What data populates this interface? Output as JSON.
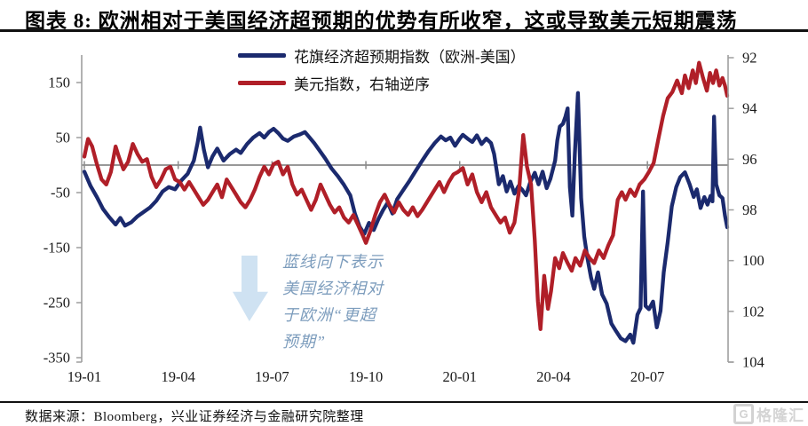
{
  "header": {
    "title": "图表 8: 欧洲相对于美国经济超预期的优势有所收窄，这或导致美元短期震荡"
  },
  "legend": {
    "items": [
      {
        "label": "花旗经济超预期指数（欧洲-美国）",
        "color": "#1b2a6e"
      },
      {
        "label": "美元指数，右轴逆序",
        "color": "#b01f28"
      }
    ]
  },
  "annotation": {
    "lines": [
      "蓝线向下表示",
      "美国经济相对",
      "于欧洲“更超",
      "预期”"
    ],
    "text_color": "#7d9dbd",
    "arrow_direction": "down",
    "arrow_color": "#cfe2f2"
  },
  "footer": {
    "source": "数据来源：Bloomberg，兴业证券经济与金融研究院整理"
  },
  "watermark": {
    "logo_letter": "G",
    "text": "格隆汇"
  },
  "colors": {
    "blue_series": "#1b2a6e",
    "red_series": "#b01f28",
    "axis": "#9e9e9e",
    "zero_line": "#8a8a8a",
    "title_rule": "#111111"
  },
  "chart_data": {
    "type": "line",
    "gridlines": "none (horizontal zero line only)",
    "x_axis": {
      "unit": "months since 2019-01",
      "range": [
        0,
        20.55
      ],
      "ticks": [
        {
          "m": 0,
          "label": "19-01"
        },
        {
          "m": 3,
          "label": "19-04"
        },
        {
          "m": 6,
          "label": "19-07"
        },
        {
          "m": 9,
          "label": "19-10"
        },
        {
          "m": 12,
          "label": "20-01"
        },
        {
          "m": 15,
          "label": "20-04"
        },
        {
          "m": 18,
          "label": "20-07"
        }
      ]
    },
    "left_axis": {
      "ticks": [
        150,
        50,
        -50,
        -150,
        -250,
        -350
      ],
      "min": -350,
      "max": 200,
      "zero_line": true
    },
    "right_axis": {
      "ticks": [
        92,
        94,
        96,
        98,
        100,
        102,
        104
      ],
      "min": 92,
      "max": 104,
      "inverted": true
    },
    "legend_position": "top-center",
    "series": [
      {
        "name": "花旗经济超预期指数（欧洲-美国）",
        "axis": "left",
        "color": "#1b2a6e",
        "points": [
          [
            0,
            -12
          ],
          [
            0.2,
            -38
          ],
          [
            0.4,
            -58
          ],
          [
            0.6,
            -80
          ],
          [
            0.8,
            -95
          ],
          [
            1,
            -108
          ],
          [
            1.15,
            -96
          ],
          [
            1.3,
            -110
          ],
          [
            1.5,
            -104
          ],
          [
            1.7,
            -93
          ],
          [
            1.9,
            -85
          ],
          [
            2.1,
            -77
          ],
          [
            2.3,
            -65
          ],
          [
            2.5,
            -48
          ],
          [
            2.7,
            -40
          ],
          [
            2.9,
            -44
          ],
          [
            3.1,
            -28
          ],
          [
            3.3,
            -16
          ],
          [
            3.5,
            8
          ],
          [
            3.62,
            40
          ],
          [
            3.7,
            68
          ],
          [
            3.82,
            28
          ],
          [
            3.95,
            -4
          ],
          [
            4.1,
            16
          ],
          [
            4.25,
            30
          ],
          [
            4.45,
            8
          ],
          [
            4.65,
            20
          ],
          [
            4.85,
            28
          ],
          [
            5,
            22
          ],
          [
            5.2,
            38
          ],
          [
            5.4,
            50
          ],
          [
            5.6,
            58
          ],
          [
            5.75,
            50
          ],
          [
            5.9,
            60
          ],
          [
            6.05,
            66
          ],
          [
            6.2,
            58
          ],
          [
            6.35,
            48
          ],
          [
            6.5,
            44
          ],
          [
            6.7,
            52
          ],
          [
            6.9,
            56
          ],
          [
            7.05,
            60
          ],
          [
            7.2,
            50
          ],
          [
            7.35,
            40
          ],
          [
            7.5,
            28
          ],
          [
            7.7,
            12
          ],
          [
            7.9,
            -6
          ],
          [
            8.1,
            -20
          ],
          [
            8.3,
            -36
          ],
          [
            8.5,
            -55
          ],
          [
            8.65,
            -88
          ],
          [
            8.8,
            -112
          ],
          [
            8.95,
            -125
          ],
          [
            9.1,
            -105
          ],
          [
            9.25,
            -118
          ],
          [
            9.4,
            -98
          ],
          [
            9.55,
            -82
          ],
          [
            9.7,
            -68
          ],
          [
            9.85,
            -88
          ],
          [
            10,
            -62
          ],
          [
            10.2,
            -45
          ],
          [
            10.4,
            -28
          ],
          [
            10.6,
            -10
          ],
          [
            10.8,
            8
          ],
          [
            11,
            25
          ],
          [
            11.2,
            40
          ],
          [
            11.4,
            52
          ],
          [
            11.55,
            45
          ],
          [
            11.7,
            50
          ],
          [
            11.85,
            35
          ],
          [
            12,
            48
          ],
          [
            12.1,
            55
          ],
          [
            12.25,
            48
          ],
          [
            12.4,
            42
          ],
          [
            12.55,
            54
          ],
          [
            12.7,
            38
          ],
          [
            12.85,
            48
          ],
          [
            13,
            40
          ],
          [
            13.1,
            20
          ],
          [
            13.25,
            -35
          ],
          [
            13.38,
            -20
          ],
          [
            13.5,
            -48
          ],
          [
            13.62,
            -30
          ],
          [
            13.75,
            -52
          ],
          [
            13.88,
            -38
          ],
          [
            14,
            -45
          ],
          [
            14.12,
            -55
          ],
          [
            14.25,
            -32
          ],
          [
            14.4,
            -14
          ],
          [
            14.52,
            -35
          ],
          [
            14.65,
            -12
          ],
          [
            14.78,
            -42
          ],
          [
            14.9,
            -25
          ],
          [
            15.05,
            8
          ],
          [
            15.12,
            45
          ],
          [
            15.2,
            70
          ],
          [
            15.3,
            75
          ],
          [
            15.38,
            88
          ],
          [
            15.45,
            103
          ],
          [
            15.52,
            -40
          ],
          [
            15.6,
            -92
          ],
          [
            15.68,
            20
          ],
          [
            15.78,
            131
          ],
          [
            15.88,
            -60
          ],
          [
            15.98,
            -130
          ],
          [
            16.08,
            -168
          ],
          [
            16.2,
            -205
          ],
          [
            16.3,
            -225
          ],
          [
            16.42,
            -195
          ],
          [
            16.55,
            -235
          ],
          [
            16.7,
            -252
          ],
          [
            16.85,
            -288
          ],
          [
            17,
            -302
          ],
          [
            17.15,
            -315
          ],
          [
            17.3,
            -320
          ],
          [
            17.45,
            -308
          ],
          [
            17.55,
            -323
          ],
          [
            17.68,
            -272
          ],
          [
            17.78,
            -260
          ],
          [
            17.86,
            -48
          ],
          [
            17.94,
            -256
          ],
          [
            18.05,
            -262
          ],
          [
            18.18,
            -248
          ],
          [
            18.3,
            -295
          ],
          [
            18.42,
            -265
          ],
          [
            18.52,
            -195
          ],
          [
            18.65,
            -140
          ],
          [
            18.78,
            -75
          ],
          [
            18.92,
            -40
          ],
          [
            19.05,
            -22
          ],
          [
            19.2,
            -13
          ],
          [
            19.35,
            -35
          ],
          [
            19.48,
            -58
          ],
          [
            19.58,
            -44
          ],
          [
            19.7,
            -78
          ],
          [
            19.82,
            -58
          ],
          [
            19.92,
            -72
          ],
          [
            20.02,
            -56
          ],
          [
            20.08,
            -66
          ],
          [
            20.13,
            88
          ],
          [
            20.2,
            -35
          ],
          [
            20.3,
            -55
          ],
          [
            20.4,
            -60
          ],
          [
            20.48,
            -92
          ],
          [
            20.55,
            -113
          ]
        ]
      },
      {
        "name": "美元指数，右轴逆序",
        "axis": "right",
        "color": "#b01f28",
        "points": [
          [
            0,
            95.9
          ],
          [
            0.12,
            95.2
          ],
          [
            0.25,
            95.5
          ],
          [
            0.4,
            96.2
          ],
          [
            0.55,
            96.8
          ],
          [
            0.7,
            97
          ],
          [
            0.85,
            96.5
          ],
          [
            1,
            95.5
          ],
          [
            1.1,
            95.9
          ],
          [
            1.25,
            96.4
          ],
          [
            1.4,
            96.1
          ],
          [
            1.55,
            95.4
          ],
          [
            1.7,
            95.8
          ],
          [
            1.85,
            96.1
          ],
          [
            2,
            96
          ],
          [
            2.15,
            96.7
          ],
          [
            2.3,
            97.1
          ],
          [
            2.45,
            96.8
          ],
          [
            2.6,
            96.4
          ],
          [
            2.75,
            96.3
          ],
          [
            2.9,
            96.8
          ],
          [
            3.05,
            96.9
          ],
          [
            3.2,
            97.2
          ],
          [
            3.35,
            96.9
          ],
          [
            3.5,
            97.2
          ],
          [
            3.65,
            97.5
          ],
          [
            3.8,
            97.8
          ],
          [
            3.95,
            97.6
          ],
          [
            4.1,
            97.3
          ],
          [
            4.25,
            97
          ],
          [
            4.4,
            97.5
          ],
          [
            4.55,
            96.8
          ],
          [
            4.7,
            97.1
          ],
          [
            4.85,
            97.4
          ],
          [
            5,
            97.7
          ],
          [
            5.15,
            97.9
          ],
          [
            5.3,
            97.6
          ],
          [
            5.45,
            97.2
          ],
          [
            5.6,
            96.7
          ],
          [
            5.75,
            96.3
          ],
          [
            5.9,
            96.6
          ],
          [
            6.05,
            96.2
          ],
          [
            6.2,
            96.1
          ],
          [
            6.35,
            96.6
          ],
          [
            6.5,
            96.3
          ],
          [
            6.65,
            97
          ],
          [
            6.8,
            97.4
          ],
          [
            6.95,
            97.2
          ],
          [
            7.1,
            97.6
          ],
          [
            7.25,
            98
          ],
          [
            7.4,
            97.6
          ],
          [
            7.55,
            97
          ],
          [
            7.7,
            97.4
          ],
          [
            7.85,
            97.8
          ],
          [
            8,
            98.1
          ],
          [
            8.15,
            97.9
          ],
          [
            8.3,
            98.3
          ],
          [
            8.45,
            98.5
          ],
          [
            8.6,
            98.2
          ],
          [
            8.75,
            98.6
          ],
          [
            8.9,
            99
          ],
          [
            9,
            99.3
          ],
          [
            9.15,
            98.8
          ],
          [
            9.3,
            98.2
          ],
          [
            9.45,
            97.7
          ],
          [
            9.6,
            97.4
          ],
          [
            9.75,
            97.8
          ],
          [
            9.9,
            98.1
          ],
          [
            10.05,
            97.7
          ],
          [
            10.2,
            98
          ],
          [
            10.35,
            98.2
          ],
          [
            10.5,
            97.9
          ],
          [
            10.65,
            98.25
          ],
          [
            10.8,
            98
          ],
          [
            11,
            97.6
          ],
          [
            11.2,
            97.2
          ],
          [
            11.35,
            96.9
          ],
          [
            11.5,
            97.3
          ],
          [
            11.65,
            96.9
          ],
          [
            11.8,
            96.6
          ],
          [
            11.95,
            96.5
          ],
          [
            12.1,
            96.35
          ],
          [
            12.25,
            97
          ],
          [
            12.4,
            96.6
          ],
          [
            12.55,
            97.3
          ],
          [
            12.7,
            97.7
          ],
          [
            12.85,
            97.3
          ],
          [
            13,
            97.9
          ],
          [
            13.15,
            98.2
          ],
          [
            13.3,
            98.5
          ],
          [
            13.45,
            98.3
          ],
          [
            13.6,
            98.9
          ],
          [
            13.75,
            98.5
          ],
          [
            13.9,
            97.2
          ],
          [
            14.03,
            95.05
          ],
          [
            14.15,
            96.3
          ],
          [
            14.28,
            97
          ],
          [
            14.4,
            99.2
          ],
          [
            14.5,
            101.6
          ],
          [
            14.58,
            102.7
          ],
          [
            14.7,
            100.6
          ],
          [
            14.82,
            101.9
          ],
          [
            14.92,
            101.2
          ],
          [
            15.05,
            99.9
          ],
          [
            15.18,
            100.3
          ],
          [
            15.3,
            99.7
          ],
          [
            15.45,
            100.1
          ],
          [
            15.58,
            100.4
          ],
          [
            15.7,
            99.9
          ],
          [
            15.85,
            100.2
          ],
          [
            16,
            99.6
          ],
          [
            16.15,
            99.9
          ],
          [
            16.3,
            100.1
          ],
          [
            16.45,
            99.6
          ],
          [
            16.6,
            99.9
          ],
          [
            16.75,
            99.4
          ],
          [
            16.9,
            99
          ],
          [
            17.05,
            97.6
          ],
          [
            17.18,
            97.3
          ],
          [
            17.3,
            97.6
          ],
          [
            17.45,
            97.2
          ],
          [
            17.6,
            97.45
          ],
          [
            17.75,
            97
          ],
          [
            17.9,
            96.8
          ],
          [
            18.05,
            96.5
          ],
          [
            18.2,
            96.15
          ],
          [
            18.35,
            95.2
          ],
          [
            18.5,
            94.3
          ],
          [
            18.65,
            93.6
          ],
          [
            18.8,
            93.35
          ],
          [
            18.95,
            92.9
          ],
          [
            19.1,
            93.4
          ],
          [
            19.2,
            92.7
          ],
          [
            19.32,
            93.2
          ],
          [
            19.45,
            92.5
          ],
          [
            19.55,
            93
          ],
          [
            19.65,
            92.2
          ],
          [
            19.78,
            92.8
          ],
          [
            19.9,
            93.3
          ],
          [
            20,
            92.6
          ],
          [
            20.1,
            93
          ],
          [
            20.2,
            92.5
          ],
          [
            20.3,
            93.1
          ],
          [
            20.4,
            92.8
          ],
          [
            20.48,
            93.1
          ],
          [
            20.55,
            93.5
          ]
        ]
      }
    ]
  }
}
